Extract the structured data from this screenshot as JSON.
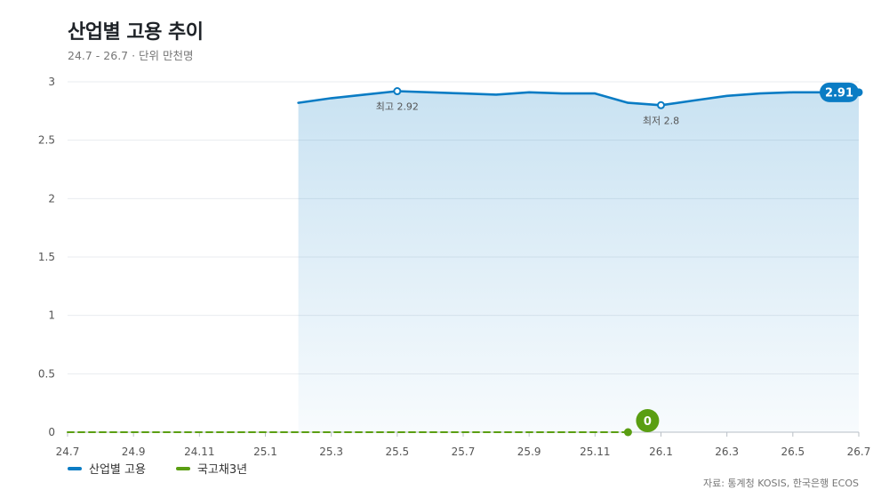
{
  "header": {
    "title": "산업별 고용 추이",
    "subtitle": "24.7 - 26.7 · 단위 만천명"
  },
  "source": "자료: 통계청 KOSIS, 한국은행 ECOS",
  "colors": {
    "blue": "#0a7cc4",
    "green": "#5a9e12",
    "grid": "#e8ebef",
    "axis": "#b9bfc6"
  },
  "chart_data": {
    "type": "line",
    "title": "산업별 고용 추이",
    "subtitle": "24.7 - 26.7 · 단위 만천명",
    "x": [
      "24.7",
      "24.8",
      "24.9",
      "24.10",
      "24.11",
      "24.12",
      "25.1",
      "25.2",
      "25.3",
      "25.4",
      "25.5",
      "25.6",
      "25.7",
      "25.8",
      "25.9",
      "25.10",
      "25.11",
      "25.12",
      "26.1",
      "26.2",
      "26.3",
      "26.4",
      "26.5",
      "26.6",
      "26.7"
    ],
    "x_tick_labels": [
      "24.7",
      "24.9",
      "24.11",
      "25.1",
      "25.3",
      "25.5",
      "25.7",
      "25.9",
      "25.11",
      "26.1",
      "26.3",
      "26.5",
      "26.7"
    ],
    "ylim": [
      0,
      3
    ],
    "y_ticks": [
      "0",
      "0.5",
      "1",
      "1.5",
      "2",
      "2.5",
      "3"
    ],
    "grid": true,
    "legend": "bottom-left",
    "series": [
      {
        "name": "산업별 고용",
        "color": "#0a7cc4",
        "area": true,
        "values": [
          null,
          null,
          null,
          null,
          null,
          null,
          null,
          2.82,
          2.86,
          2.89,
          2.92,
          2.91,
          2.9,
          2.89,
          2.91,
          2.9,
          2.9,
          2.82,
          2.8,
          2.84,
          2.88,
          2.9,
          2.91,
          2.91,
          2.91
        ]
      },
      {
        "name": "국고채3년",
        "color": "#5a9e12",
        "dashed": true,
        "values": [
          0,
          0,
          0,
          0,
          0,
          0,
          0,
          0,
          0,
          0,
          0,
          0,
          0,
          0,
          0,
          0,
          0,
          0,
          null,
          null,
          null,
          null,
          null,
          null,
          null
        ]
      }
    ],
    "annotations": [
      {
        "series": 0,
        "index": 10,
        "label": "최고 2.92"
      },
      {
        "series": 0,
        "index": 18,
        "label": "최저 2.8"
      }
    ],
    "end_labels": [
      {
        "series": 0,
        "index": 24,
        "label": "2.91"
      },
      {
        "series": 1,
        "index": 17,
        "label": "0"
      }
    ]
  }
}
